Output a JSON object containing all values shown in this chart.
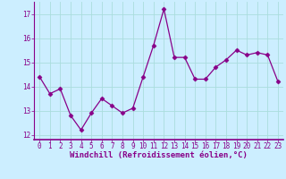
{
  "x": [
    0,
    1,
    2,
    3,
    4,
    5,
    6,
    7,
    8,
    9,
    10,
    11,
    12,
    13,
    14,
    15,
    16,
    17,
    18,
    19,
    20,
    21,
    22,
    23
  ],
  "y": [
    14.4,
    13.7,
    13.9,
    12.8,
    12.2,
    12.9,
    13.5,
    13.2,
    12.9,
    13.1,
    14.4,
    15.7,
    17.2,
    15.2,
    15.2,
    14.3,
    14.3,
    14.8,
    15.1,
    15.5,
    15.3,
    15.4,
    15.3,
    14.2
  ],
  "line_color": "#880088",
  "marker": "D",
  "markersize": 2.5,
  "linewidth": 0.9,
  "bg_color": "#cceeff",
  "grid_color": "#aadddd",
  "xlabel": "Windchill (Refroidissement éolien,°C)",
  "xlabel_color": "#880088",
  "tick_color": "#880088",
  "axis_color": "#880088",
  "ylim": [
    11.8,
    17.5
  ],
  "xlim": [
    -0.5,
    23.5
  ],
  "yticks": [
    12,
    13,
    14,
    15,
    16,
    17
  ],
  "xticks": [
    0,
    1,
    2,
    3,
    4,
    5,
    6,
    7,
    8,
    9,
    10,
    11,
    12,
    13,
    14,
    15,
    16,
    17,
    18,
    19,
    20,
    21,
    22,
    23
  ],
  "tick_fontsize": 5.5,
  "xlabel_fontsize": 6.5
}
